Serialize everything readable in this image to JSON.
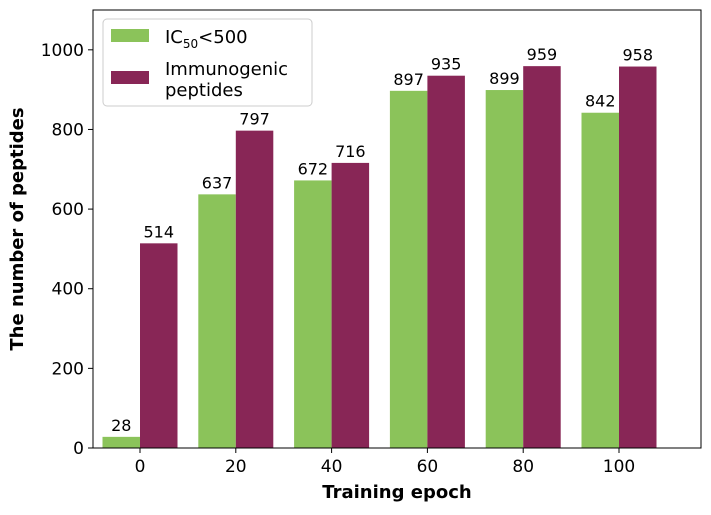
{
  "chart_data": {
    "type": "bar",
    "categories": [
      "0",
      "20",
      "40",
      "60",
      "80",
      "100"
    ],
    "series": [
      {
        "name": "IC50<500",
        "name_parts": {
          "base": "IC",
          "sub": "50",
          "rest": "<500"
        },
        "values": [
          28,
          637,
          672,
          897,
          899,
          842
        ],
        "color": "#8bc35a"
      },
      {
        "name": "Immunogenic peptides",
        "name_lines": [
          "Immunogenic",
          "peptides"
        ],
        "values": [
          514,
          797,
          716,
          935,
          959,
          958
        ],
        "color": "#882656"
      }
    ],
    "xlabel": "Training epoch",
    "ylabel": "The number of peptides",
    "ylim": [
      0,
      1100
    ],
    "yticks": [
      0,
      200,
      400,
      600,
      800,
      1000
    ],
    "grid": false,
    "legend": "top-left"
  }
}
